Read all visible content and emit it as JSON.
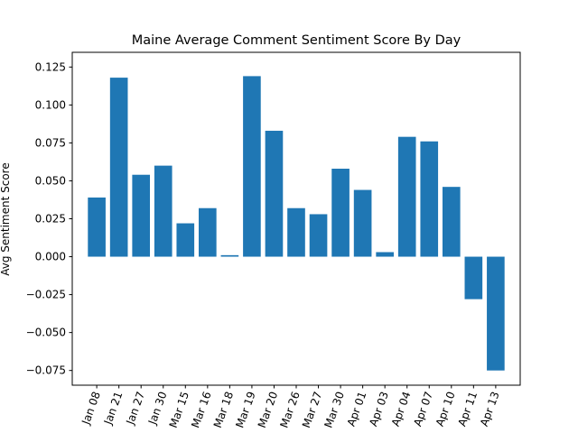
{
  "chart_data": {
    "type": "bar",
    "title": "Maine Average Comment Sentiment Score By Day",
    "xlabel": "",
    "ylabel": "Avg Sentiment Score",
    "categories": [
      "Jan 08",
      "Jan 21",
      "Jan 27",
      "Jan 30",
      "Mar 15",
      "Mar 16",
      "Mar 18",
      "Mar 19",
      "Mar 20",
      "Mar 26",
      "Mar 27",
      "Mar 30",
      "Apr 01",
      "Apr 03",
      "Apr 04",
      "Apr 07",
      "Apr 10",
      "Apr 11",
      "Apr 13"
    ],
    "values": [
      0.039,
      0.118,
      0.054,
      0.06,
      0.022,
      0.032,
      0.001,
      0.119,
      0.083,
      0.032,
      0.028,
      0.058,
      0.044,
      0.003,
      0.079,
      0.076,
      0.046,
      -0.028,
      -0.075
    ],
    "ylim": [
      -0.0847,
      0.1347
    ],
    "yticks": [
      -0.075,
      -0.05,
      -0.025,
      0.0,
      0.025,
      0.05,
      0.075,
      0.1,
      0.125
    ],
    "ytick_labels": [
      "−0.075",
      "−0.050",
      "−0.025",
      "0.000",
      "0.025",
      "0.050",
      "0.075",
      "0.100",
      "0.125"
    ],
    "bar_color": "#1f77b4",
    "grid": false,
    "legend": "none"
  }
}
